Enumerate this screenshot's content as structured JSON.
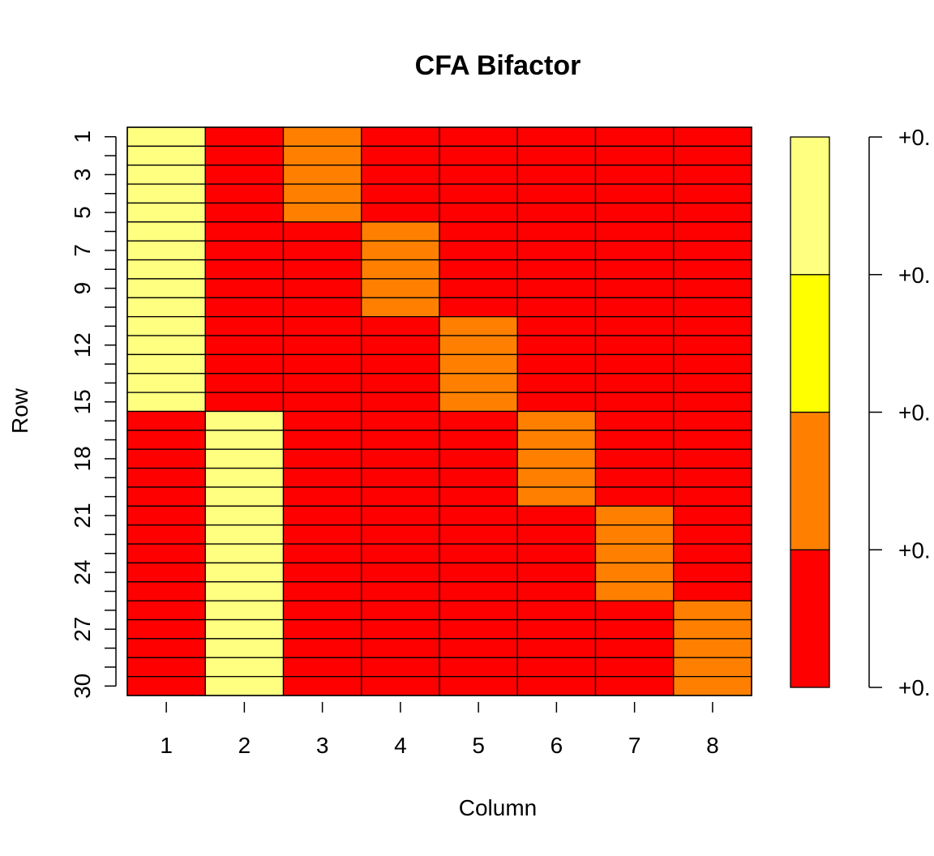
{
  "chart_data": {
    "type": "heatmap",
    "title": "CFA Bifactor",
    "xlabel": "Column",
    "ylabel": "Row",
    "columns": [
      "1",
      "2",
      "3",
      "4",
      "5",
      "6",
      "7",
      "8"
    ],
    "rows": [
      "1",
      "2",
      "3",
      "4",
      "5",
      "6",
      "7",
      "8",
      "9",
      "10",
      "11",
      "12",
      "13",
      "14",
      "15",
      "16",
      "17",
      "18",
      "19",
      "20",
      "21",
      "22",
      "23",
      "24",
      "25",
      "26",
      "27",
      "28",
      "29",
      "30"
    ],
    "row_tick_labels": [
      "1",
      "3",
      "5",
      "7",
      "9",
      "12",
      "15",
      "18",
      "21",
      "24",
      "27",
      "30"
    ],
    "row_tick_positions": [
      1,
      3,
      5,
      7,
      9,
      12,
      15,
      18,
      21,
      24,
      27,
      30
    ],
    "palette": [
      "#FF0000",
      "#FF8000",
      "#FFFF00",
      "#FFFF80"
    ],
    "levels": [
      [
        3,
        0,
        1,
        0,
        0,
        0,
        0,
        0
      ],
      [
        3,
        0,
        1,
        0,
        0,
        0,
        0,
        0
      ],
      [
        3,
        0,
        1,
        0,
        0,
        0,
        0,
        0
      ],
      [
        3,
        0,
        1,
        0,
        0,
        0,
        0,
        0
      ],
      [
        3,
        0,
        1,
        0,
        0,
        0,
        0,
        0
      ],
      [
        3,
        0,
        0,
        1,
        0,
        0,
        0,
        0
      ],
      [
        3,
        0,
        0,
        1,
        0,
        0,
        0,
        0
      ],
      [
        3,
        0,
        0,
        1,
        0,
        0,
        0,
        0
      ],
      [
        3,
        0,
        0,
        1,
        0,
        0,
        0,
        0
      ],
      [
        3,
        0,
        0,
        1,
        0,
        0,
        0,
        0
      ],
      [
        3,
        0,
        0,
        0,
        1,
        0,
        0,
        0
      ],
      [
        3,
        0,
        0,
        0,
        1,
        0,
        0,
        0
      ],
      [
        3,
        0,
        0,
        0,
        1,
        0,
        0,
        0
      ],
      [
        3,
        0,
        0,
        0,
        1,
        0,
        0,
        0
      ],
      [
        3,
        0,
        0,
        0,
        1,
        0,
        0,
        0
      ],
      [
        0,
        3,
        0,
        0,
        0,
        1,
        0,
        0
      ],
      [
        0,
        3,
        0,
        0,
        0,
        1,
        0,
        0
      ],
      [
        0,
        3,
        0,
        0,
        0,
        1,
        0,
        0
      ],
      [
        0,
        3,
        0,
        0,
        0,
        1,
        0,
        0
      ],
      [
        0,
        3,
        0,
        0,
        0,
        1,
        0,
        0
      ],
      [
        0,
        3,
        0,
        0,
        0,
        0,
        1,
        0
      ],
      [
        0,
        3,
        0,
        0,
        0,
        0,
        1,
        0
      ],
      [
        0,
        3,
        0,
        0,
        0,
        0,
        1,
        0
      ],
      [
        0,
        3,
        0,
        0,
        0,
        0,
        1,
        0
      ],
      [
        0,
        3,
        0,
        0,
        0,
        0,
        1,
        0
      ],
      [
        0,
        3,
        0,
        0,
        0,
        0,
        0,
        1
      ],
      [
        0,
        3,
        0,
        0,
        0,
        0,
        0,
        1
      ],
      [
        0,
        3,
        0,
        0,
        0,
        0,
        0,
        1
      ],
      [
        0,
        3,
        0,
        0,
        0,
        0,
        0,
        1
      ],
      [
        0,
        3,
        0,
        0,
        0,
        0,
        0,
        1
      ]
    ],
    "legend": {
      "tick_labels": [
        "+0.",
        "+0.",
        "+0.",
        "+0.",
        "+0."
      ]
    }
  }
}
